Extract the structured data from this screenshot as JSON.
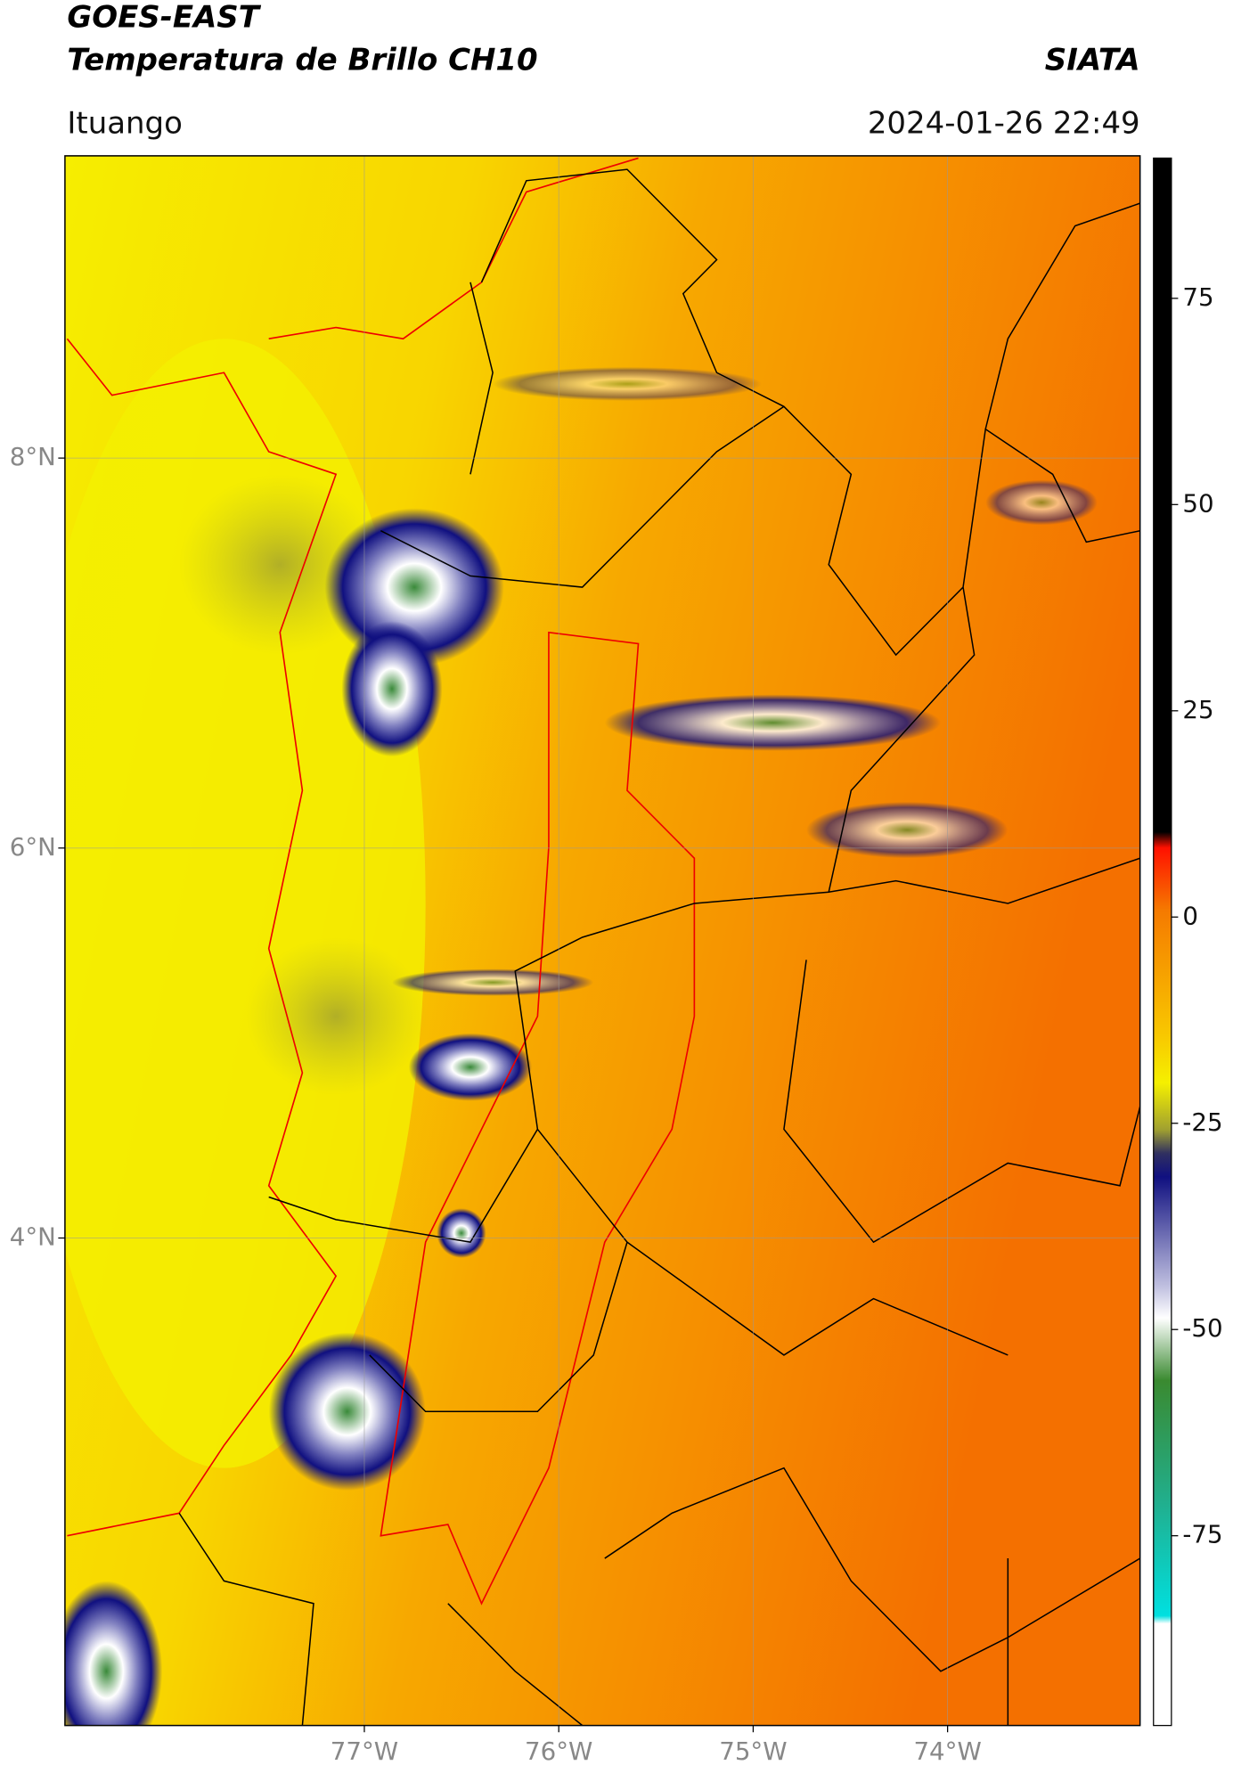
{
  "header": {
    "satellite": "GOES-EAST",
    "product": "Temperatura de Brillo CH10",
    "agency": "SIATA",
    "location": "Ituango",
    "datetime": "2024-01-26 22:49"
  },
  "map": {
    "lat_lim": [
      1.5,
      9.55
    ],
    "lon_lim": [
      -78.54,
      -73.01
    ],
    "lat_ticks": [
      {
        "value": 8,
        "label": "8°N"
      },
      {
        "value": 6,
        "label": "6°N"
      },
      {
        "value": 4,
        "label": "4°N"
      }
    ],
    "lon_ticks": [
      {
        "value": -77,
        "label": "77°W"
      },
      {
        "value": -76,
        "label": "76°W"
      },
      {
        "value": -75,
        "label": "75°W"
      },
      {
        "value": -74,
        "label": "74°W"
      }
    ],
    "grid": true
  },
  "colorbar": {
    "lim": [
      -98,
      92
    ],
    "ticks": [
      75,
      50,
      25,
      0,
      -25,
      -50,
      -75
    ]
  }
}
